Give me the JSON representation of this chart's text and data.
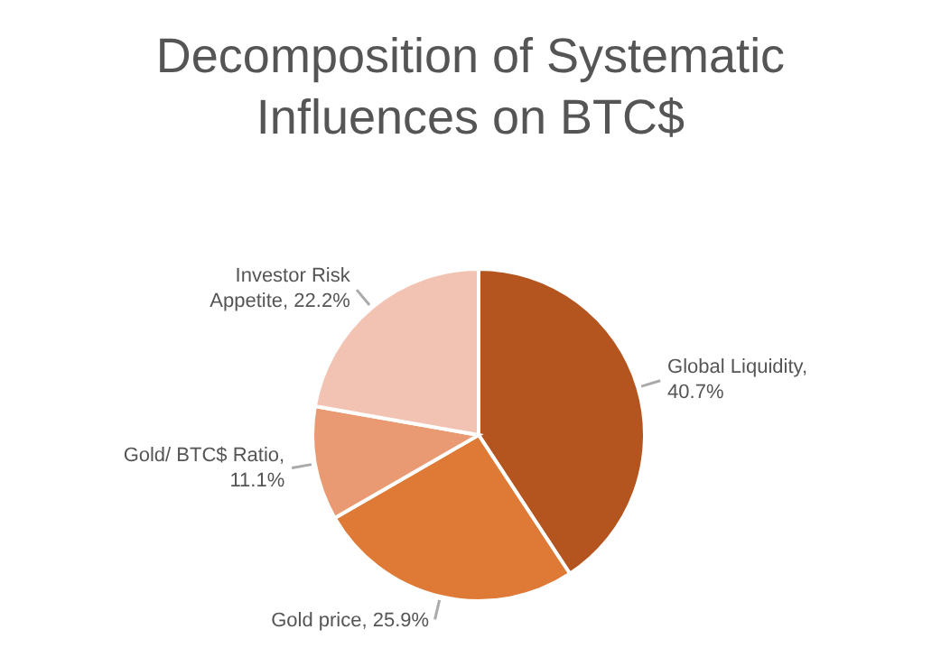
{
  "chart_data": {
    "type": "pie",
    "title": "Decomposition of Systematic Influences on BTC$",
    "categories": [
      "Global Liquidity",
      "Gold price",
      "Gold/ BTC$ Ratio",
      "Investor Risk Appetite"
    ],
    "values": [
      40.7,
      25.9,
      11.1,
      22.2
    ],
    "colors": [
      "#b4541f",
      "#df7a36",
      "#e99a72",
      "#f2c3b2"
    ],
    "value_labels": [
      ", 40.7%",
      ", 25.9%",
      ", 11.1%",
      ", 22.2%"
    ],
    "data_labels": true,
    "legend": false
  }
}
